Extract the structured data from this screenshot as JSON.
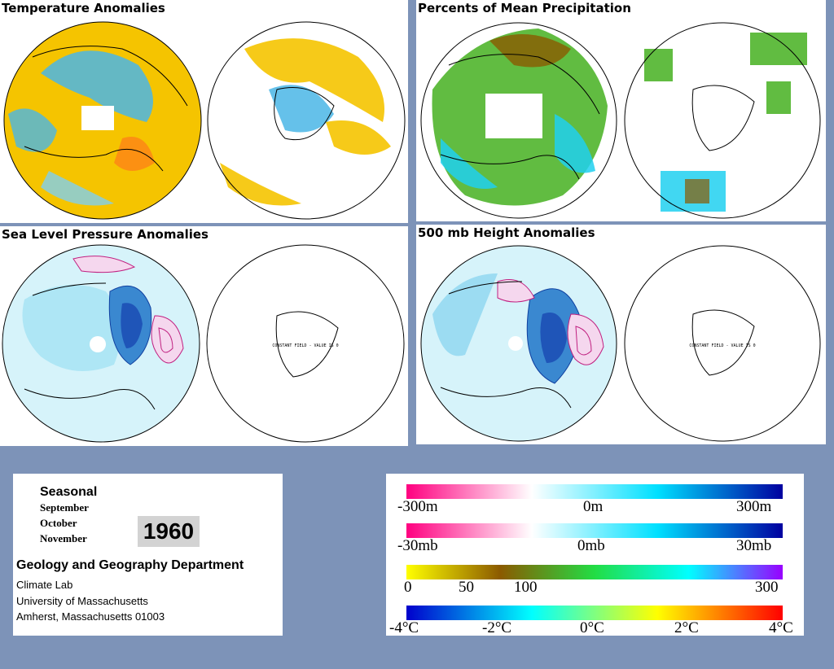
{
  "panels": {
    "temperature": {
      "title": "Temperature Anomalies"
    },
    "precipitation": {
      "title": "Percents of Mean Precipitation"
    },
    "slp": {
      "title": "Sea Level Pressure Anomalies",
      "note": "CONSTANT FIELD - VALUE IS 0"
    },
    "height500": {
      "title": "500 mb Height Anomalies",
      "note": "CONSTANT FIELD - VALUE IS 0"
    }
  },
  "info": {
    "season_label": "Seasonal",
    "months": [
      "September",
      "October",
      "November"
    ],
    "year": "1960",
    "department": "Geology and Geography Department",
    "address": [
      "Climate Lab",
      "University of Massachusetts",
      "Amherst, Massachusetts 01003"
    ]
  },
  "legends": [
    {
      "name": "height",
      "labels": [
        "-300m",
        "0m",
        "300m"
      ],
      "colors": [
        "#ff0080",
        "#ffffff",
        "#00e0ff",
        "#0000a0"
      ]
    },
    {
      "name": "pressure",
      "labels": [
        "-30mb",
        "0mb",
        "30mb"
      ],
      "colors": [
        "#ff0080",
        "#ffffff",
        "#00e0ff",
        "#0000a0"
      ]
    },
    {
      "name": "precip",
      "labels": [
        "0",
        "50",
        "100",
        "300"
      ],
      "colors": [
        "#ffff00",
        "#8b5a00",
        "#22dd44",
        "#00ffff",
        "#9900ff"
      ]
    },
    {
      "name": "temp",
      "labels": [
        "-4°C",
        "-2°C",
        "0°C",
        "2°C",
        "4°C"
      ],
      "colors": [
        "#0000cc",
        "#00ffff",
        "#ffff00",
        "#ff0000"
      ]
    }
  ],
  "colors": {
    "background": "#7d93b8",
    "warm_anomaly": "#f5c400",
    "cool_anomaly": "#4ab6e6",
    "positive_contour": "#c02080",
    "negative_contour": "#1040a0"
  }
}
